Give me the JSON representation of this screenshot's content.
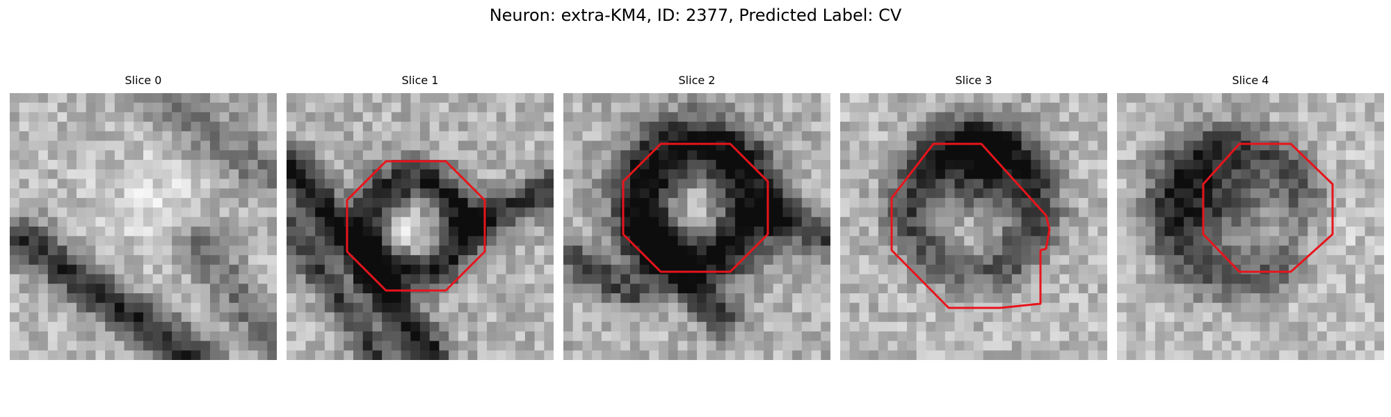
{
  "figure": {
    "title": "Neuron: extra-KM4, ID: 2377, Predicted Label: CV"
  },
  "colors": {
    "background": "#ffffff",
    "outline": "#e8141c"
  },
  "slices": [
    {
      "label": "Slice 0",
      "has_outline": false
    },
    {
      "label": "Slice 1",
      "has_outline": true
    },
    {
      "label": "Slice 2",
      "has_outline": true
    },
    {
      "label": "Slice 3",
      "has_outline": true
    },
    {
      "label": "Slice 4",
      "has_outline": true
    }
  ]
}
